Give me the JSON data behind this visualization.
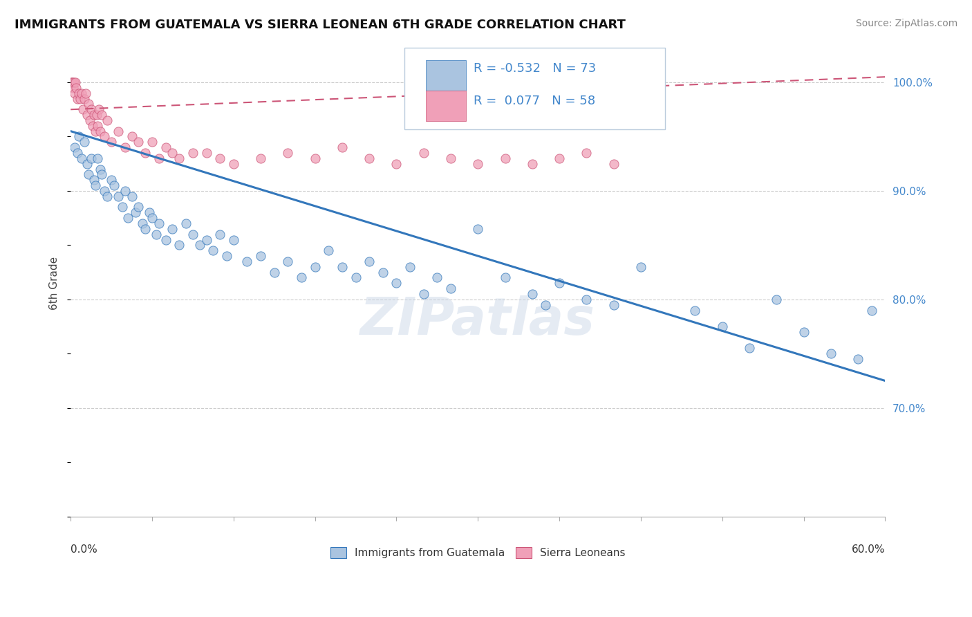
{
  "title": "IMMIGRANTS FROM GUATEMALA VS SIERRA LEONEAN 6TH GRADE CORRELATION CHART",
  "source": "Source: ZipAtlas.com",
  "ylabel": "6th Grade",
  "xmin": 0.0,
  "xmax": 60.0,
  "ymin": 60.0,
  "ymax": 103.0,
  "blue_R": -0.532,
  "blue_N": 73,
  "pink_R": 0.077,
  "pink_N": 58,
  "blue_color": "#aac4e0",
  "pink_color": "#f0a0b8",
  "blue_line_color": "#3377bb",
  "pink_line_color": "#cc5577",
  "text_color": "#4488cc",
  "watermark": "ZIPatlas",
  "blue_line_x0": 0.0,
  "blue_line_y0": 95.5,
  "blue_line_x1": 60.0,
  "blue_line_y1": 72.5,
  "pink_line_x0": 0.0,
  "pink_line_y0": 97.5,
  "pink_line_x1": 60.0,
  "pink_line_y1": 100.5,
  "blue_scatter_x": [
    0.3,
    0.5,
    0.6,
    0.8,
    1.0,
    1.2,
    1.3,
    1.5,
    1.7,
    1.8,
    2.0,
    2.2,
    2.3,
    2.5,
    2.7,
    3.0,
    3.2,
    3.5,
    3.8,
    4.0,
    4.2,
    4.5,
    4.8,
    5.0,
    5.3,
    5.5,
    5.8,
    6.0,
    6.3,
    6.5,
    7.0,
    7.5,
    8.0,
    8.5,
    9.0,
    9.5,
    10.0,
    10.5,
    11.0,
    11.5,
    12.0,
    13.0,
    14.0,
    15.0,
    16.0,
    17.0,
    18.0,
    19.0,
    20.0,
    21.0,
    22.0,
    23.0,
    24.0,
    25.0,
    26.0,
    27.0,
    28.0,
    30.0,
    32.0,
    34.0,
    35.0,
    36.0,
    38.0,
    40.0,
    42.0,
    46.0,
    48.0,
    50.0,
    52.0,
    54.0,
    56.0,
    58.0,
    59.0
  ],
  "blue_scatter_y": [
    94.0,
    93.5,
    95.0,
    93.0,
    94.5,
    92.5,
    91.5,
    93.0,
    91.0,
    90.5,
    93.0,
    92.0,
    91.5,
    90.0,
    89.5,
    91.0,
    90.5,
    89.5,
    88.5,
    90.0,
    87.5,
    89.5,
    88.0,
    88.5,
    87.0,
    86.5,
    88.0,
    87.5,
    86.0,
    87.0,
    85.5,
    86.5,
    85.0,
    87.0,
    86.0,
    85.0,
    85.5,
    84.5,
    86.0,
    84.0,
    85.5,
    83.5,
    84.0,
    82.5,
    83.5,
    82.0,
    83.0,
    84.5,
    83.0,
    82.0,
    83.5,
    82.5,
    81.5,
    83.0,
    80.5,
    82.0,
    81.0,
    86.5,
    82.0,
    80.5,
    79.5,
    81.5,
    80.0,
    79.5,
    83.0,
    79.0,
    77.5,
    75.5,
    80.0,
    77.0,
    75.0,
    74.5,
    79.0
  ],
  "pink_scatter_x": [
    0.05,
    0.1,
    0.15,
    0.2,
    0.25,
    0.3,
    0.35,
    0.4,
    0.5,
    0.6,
    0.7,
    0.8,
    0.9,
    1.0,
    1.1,
    1.2,
    1.3,
    1.4,
    1.5,
    1.6,
    1.7,
    1.8,
    1.9,
    2.0,
    2.1,
    2.2,
    2.3,
    2.5,
    2.7,
    3.0,
    3.5,
    4.0,
    4.5,
    5.0,
    5.5,
    6.0,
    6.5,
    7.0,
    7.5,
    8.0,
    9.0,
    10.0,
    11.0,
    12.0,
    14.0,
    16.0,
    18.0,
    20.0,
    22.0,
    24.0,
    26.0,
    28.0,
    30.0,
    32.0,
    34.0,
    36.0,
    38.0,
    40.0
  ],
  "pink_scatter_y": [
    100.0,
    100.0,
    100.0,
    99.5,
    100.0,
    99.0,
    100.0,
    99.5,
    98.5,
    99.0,
    98.5,
    99.0,
    97.5,
    98.5,
    99.0,
    97.0,
    98.0,
    96.5,
    97.5,
    96.0,
    97.0,
    95.5,
    97.0,
    96.0,
    97.5,
    95.5,
    97.0,
    95.0,
    96.5,
    94.5,
    95.5,
    94.0,
    95.0,
    94.5,
    93.5,
    94.5,
    93.0,
    94.0,
    93.5,
    93.0,
    93.5,
    93.5,
    93.0,
    92.5,
    93.0,
    93.5,
    93.0,
    94.0,
    93.0,
    92.5,
    93.5,
    93.0,
    92.5,
    93.0,
    92.5,
    93.0,
    93.5,
    92.5
  ]
}
